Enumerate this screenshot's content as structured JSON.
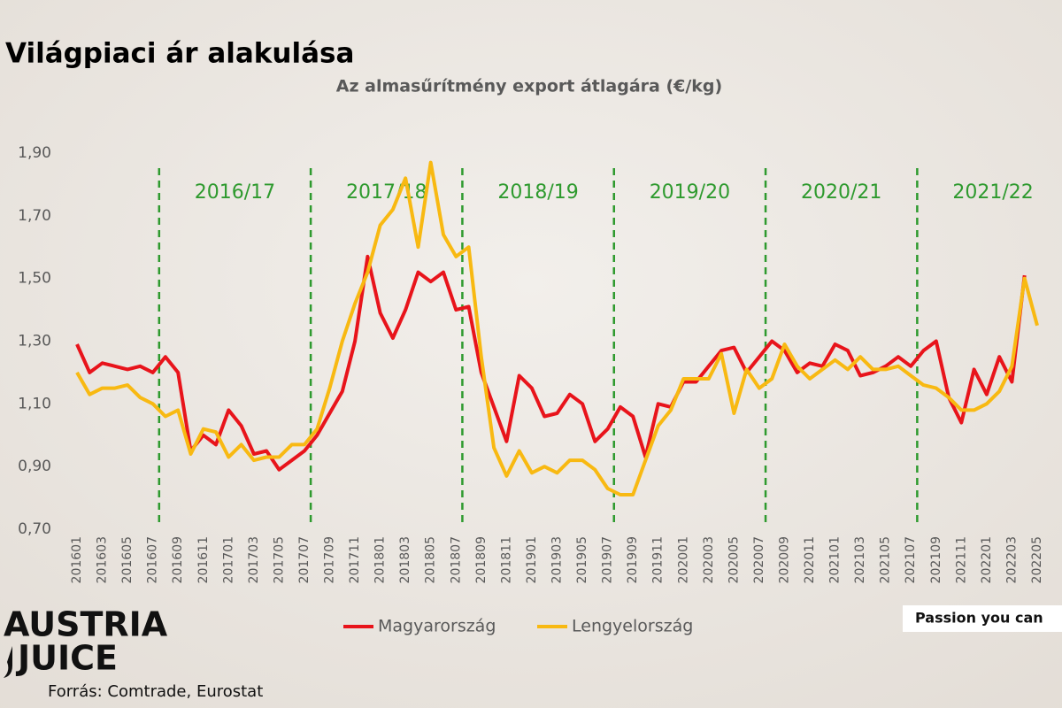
{
  "chart_data": {
    "type": "line",
    "title": "Világpiaci ár alakulása",
    "subtitle": "Az almasűrítmény export átlagára (€/kg)",
    "categories": [
      "201601",
      null,
      "201603",
      null,
      "201605",
      null,
      "201607",
      null,
      "201609",
      null,
      "201611",
      null,
      "201701",
      null,
      "201703",
      null,
      "201705",
      null,
      "201707",
      null,
      "201709",
      null,
      "201711",
      null,
      "201801",
      null,
      "201803",
      null,
      "201805",
      null,
      "201807",
      null,
      "201809",
      null,
      "201811",
      null,
      "201901",
      null,
      "201903",
      null,
      "201905",
      null,
      "201907",
      null,
      "201909",
      null,
      "201911",
      null,
      "202001",
      null,
      "202003",
      null,
      "202005",
      null,
      "202007",
      null,
      "202009",
      null,
      "202011",
      null,
      "202101",
      null,
      "202103",
      null,
      "202105",
      null,
      "202107",
      null,
      "202109",
      null,
      "202111",
      null,
      "202201",
      null,
      "202203",
      null,
      "202205"
    ],
    "series": [
      {
        "name": "Magyarország",
        "color": "#e8141b",
        "values": [
          1.29,
          1.2,
          1.23,
          1.22,
          1.21,
          1.22,
          1.2,
          1.25,
          1.2,
          0.95,
          1.0,
          0.97,
          1.08,
          1.03,
          0.94,
          0.95,
          0.89,
          0.92,
          0.95,
          1.0,
          1.07,
          1.14,
          1.3,
          1.57,
          1.39,
          1.31,
          1.4,
          1.52,
          1.49,
          1.52,
          1.4,
          1.41,
          1.2,
          1.09,
          0.98,
          1.19,
          1.15,
          1.06,
          1.07,
          1.13,
          1.1,
          0.98,
          1.02,
          1.09,
          1.06,
          0.93,
          1.1,
          1.09,
          1.17,
          1.17,
          1.22,
          1.27,
          1.28,
          1.2,
          1.25,
          1.3,
          1.27,
          1.2,
          1.23,
          1.22,
          1.29,
          1.27,
          1.19,
          1.2,
          1.22,
          1.25,
          1.22,
          1.27,
          1.3,
          1.12,
          1.04,
          1.21,
          1.13,
          1.25,
          1.17,
          1.51,
          null
        ]
      },
      {
        "name": "Lengyelország",
        "color": "#f8b912",
        "values": [
          1.2,
          1.13,
          1.15,
          1.15,
          1.16,
          1.12,
          1.1,
          1.06,
          1.08,
          0.94,
          1.02,
          1.01,
          0.93,
          0.97,
          0.92,
          0.93,
          0.93,
          0.97,
          0.97,
          1.02,
          1.15,
          1.3,
          1.42,
          1.52,
          1.67,
          1.72,
          1.82,
          1.6,
          1.87,
          1.64,
          1.57,
          1.6,
          1.25,
          0.96,
          0.87,
          0.95,
          0.88,
          0.9,
          0.88,
          0.92,
          0.92,
          0.89,
          0.83,
          0.81,
          0.81,
          0.92,
          1.03,
          1.08,
          1.18,
          1.18,
          1.18,
          1.26,
          1.07,
          1.21,
          1.15,
          1.18,
          1.29,
          1.22,
          1.18,
          1.21,
          1.24,
          1.21,
          1.25,
          1.21,
          1.21,
          1.22,
          1.19,
          1.16,
          1.15,
          1.12,
          1.08,
          1.08,
          1.1,
          1.14,
          1.22,
          1.5,
          1.35
        ]
      }
    ],
    "ylim": [
      0.7,
      1.9
    ],
    "yticks": [
      {
        "value": 0.7,
        "label": "0,70"
      },
      {
        "value": 0.9,
        "label": "0,90"
      },
      {
        "value": 1.1,
        "label": "1,10"
      },
      {
        "value": 1.3,
        "label": "1,30"
      },
      {
        "value": 1.5,
        "label": "1,50"
      },
      {
        "value": 1.7,
        "label": "1,70"
      },
      {
        "value": 1.9,
        "label": "1,90"
      }
    ],
    "grid": false,
    "seasons": [
      "2016/17",
      "2017/18",
      "2018/19",
      "2019/20",
      "2020/21",
      "2021/22"
    ],
    "season_color": "#2e9a2e",
    "legend": "bottom"
  },
  "logo": [
    "AUSTRIA",
    "JUICE"
  ],
  "source": "Forrás: Comtrade, Eurostat",
  "tagline": "Passion you can"
}
